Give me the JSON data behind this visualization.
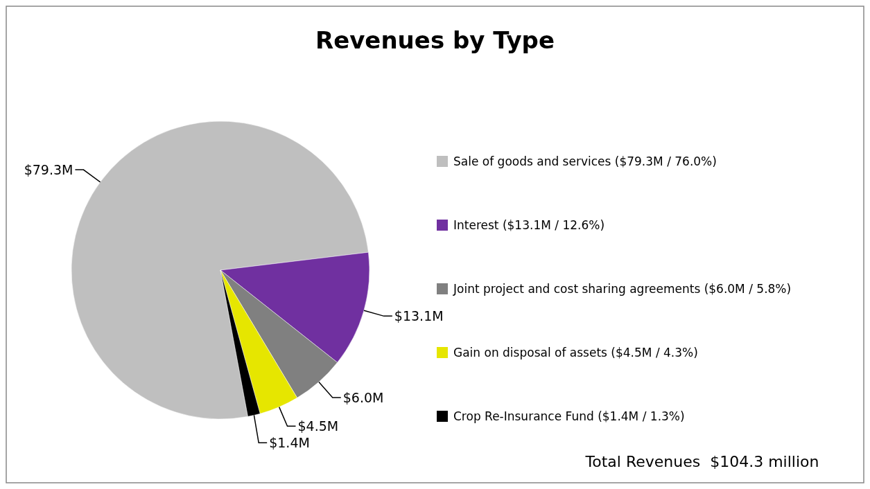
{
  "chart_data": {
    "type": "pie",
    "title": "Revenues by Type",
    "categories": [
      "Sale of goods and services ($79.3M / 76.0%)",
      "Interest ($13.1M / 12.6%)",
      "Joint project and cost sharing agreements ($6.0M / 5.8%)",
      "Gain on disposal of assets ($4.5M / 4.3%)",
      "Crop Re-Insurance Fund ($1.4M / 1.3%)"
    ],
    "values": [
      79.3,
      13.1,
      6.0,
      4.5,
      1.4
    ],
    "value_labels": [
      "$79.3M",
      "$13.1M",
      "$6.0M",
      "$4.5M",
      "$1.4M"
    ],
    "colors": [
      "#bfbfbf",
      "#7030a0",
      "#808080",
      "#e6e600",
      "#000000"
    ],
    "legend": "right",
    "annotations": [
      "Total Revenues  $104.3 million"
    ]
  }
}
